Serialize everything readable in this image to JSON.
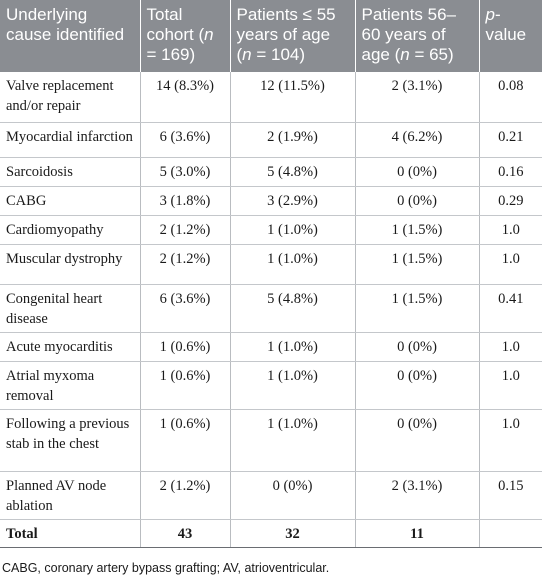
{
  "table": {
    "headers": [
      {
        "parts": [
          {
            "text": "Underlying cause identified",
            "italic": false
          }
        ]
      },
      {
        "parts": [
          {
            "text": "Total cohort (",
            "italic": false
          },
          {
            "text": "n",
            "italic": true
          },
          {
            "text": " = 169)",
            "italic": false
          }
        ]
      },
      {
        "parts": [
          {
            "text": "Patients ≤ 55 years of age (",
            "italic": false
          },
          {
            "text": "n",
            "italic": true
          },
          {
            "text": " = 104)",
            "italic": false
          }
        ]
      },
      {
        "parts": [
          {
            "text": "Patients 56–60 years of age (",
            "italic": false
          },
          {
            "text": "n",
            "italic": true
          },
          {
            "text": " = 65)",
            "italic": false
          }
        ]
      },
      {
        "parts": [
          {
            "text": "p",
            "italic": true
          },
          {
            "text": "-value",
            "italic": false
          }
        ]
      }
    ],
    "rows": [
      {
        "cause": "Valve replacement and/or repair",
        "total": "14 (8.3%)",
        "le55": "12 (11.5%)",
        "age56_60": "2 (3.1%)",
        "p": "0.08"
      },
      {
        "cause": "Myocardial infarction",
        "total": "6 (3.6%)",
        "le55": "2 (1.9%)",
        "age56_60": "4 (6.2%)",
        "p": "0.21"
      },
      {
        "cause": "Sarcoidosis",
        "total": "5 (3.0%)",
        "le55": "5 (4.8%)",
        "age56_60": "0 (0%)",
        "p": "0.16"
      },
      {
        "cause": "CABG",
        "total": "3 (1.8%)",
        "le55": "3 (2.9%)",
        "age56_60": "0 (0%)",
        "p": "0.29"
      },
      {
        "cause": "Cardiomyopathy",
        "total": "2 (1.2%)",
        "le55": "1 (1.0%)",
        "age56_60": "1 (1.5%)",
        "p": "1.0"
      },
      {
        "cause": "Muscular dystrophy",
        "total": "2 (1.2%)",
        "le55": "1 (1.0%)",
        "age56_60": "1 (1.5%)",
        "p": "1.0"
      },
      {
        "cause": "Congenital heart disease",
        "total": "6 (3.6%)",
        "le55": "5 (4.8%)",
        "age56_60": "1 (1.5%)",
        "p": "0.41"
      },
      {
        "cause": "Acute myocarditis",
        "total": "1 (0.6%)",
        "le55": "1 (1.0%)",
        "age56_60": "0 (0%)",
        "p": "1.0"
      },
      {
        "cause": "Atrial myxoma removal",
        "total": "1 (0.6%)",
        "le55": "1 (1.0%)",
        "age56_60": "0 (0%)",
        "p": "1.0"
      },
      {
        "cause": "Following a previous stab in the chest",
        "total": "1 (0.6%)",
        "le55": "1 (1.0%)",
        "age56_60": "0 (0%)",
        "p": "1.0"
      },
      {
        "cause": "Planned AV node ablation",
        "total": "2 (1.2%)",
        "le55": "0 (0%)",
        "age56_60": "2 (3.1%)",
        "p": "0.15"
      }
    ],
    "total_row": {
      "cause": "Total",
      "total": "43",
      "le55": "32",
      "age56_60": "11",
      "p": ""
    }
  },
  "footnote": "CABG, coronary artery bypass grafting; AV, atrioventricular.",
  "colors": {
    "header_bg": "#8a8d92",
    "header_text": "#ffffff",
    "grid_line": "#c4c7cb"
  }
}
